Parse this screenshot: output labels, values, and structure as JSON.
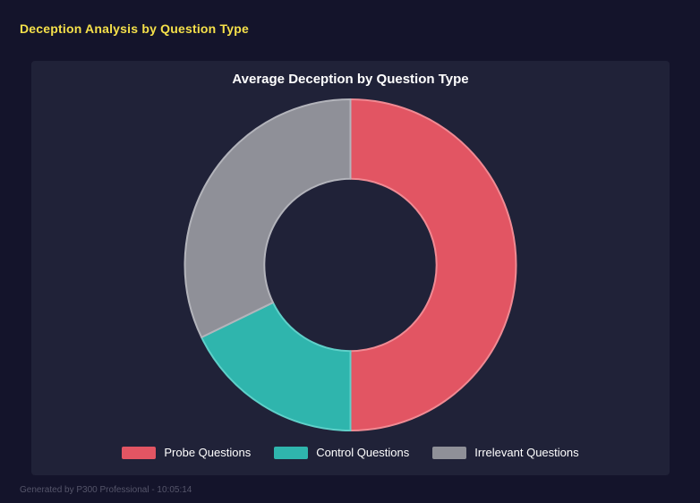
{
  "page": {
    "title": "Deception Analysis by Question Type",
    "footer": "Generated by P300 Professional - 10:05:14"
  },
  "colors": {
    "background": "#14142b",
    "card": "#202238",
    "header_text": "#f5e04a",
    "title_text": "#ffffff",
    "footer_text": "#55556a"
  },
  "chart_data": {
    "type": "pie",
    "title": "Average Deception by Question Type",
    "donut": true,
    "inner_radius_ratio": 0.52,
    "start_angle_deg": 0,
    "direction": "clockwise",
    "legend_position": "bottom",
    "value_unit": "percent_share",
    "segments": [
      {
        "label": "Probe Questions",
        "value": 50,
        "color": "#e25563",
        "border": "#f08a93"
      },
      {
        "label": "Control Questions",
        "value": 17.8,
        "color": "#2fb5ad",
        "border": "#5fd0c9"
      },
      {
        "label": "Irrelevant Questions",
        "value": 32.2,
        "color": "#8f9098",
        "border": "#b3b4bb"
      }
    ]
  }
}
